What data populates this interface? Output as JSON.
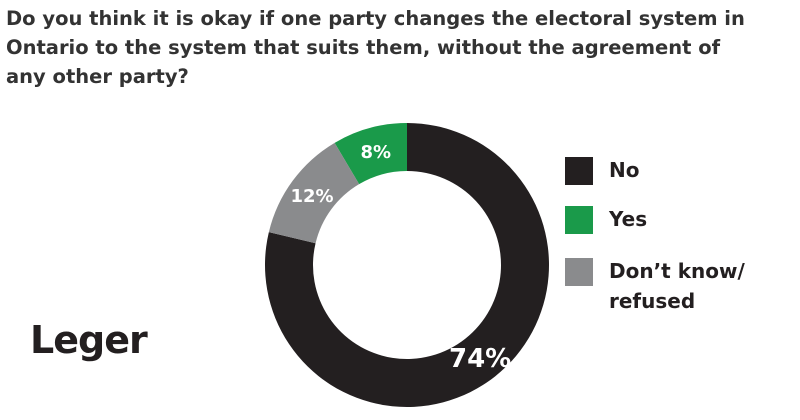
{
  "chart_data": {
    "type": "donut",
    "title": "Do you think it is okay if one party changes the electoral system in Ontario to the system that suits them, without the agreement of any other party?",
    "categories": [
      "No",
      "Yes",
      "Don’t know/ refused"
    ],
    "values": [
      74,
      8,
      12
    ],
    "value_labels": [
      "74%",
      "8%",
      "12%"
    ],
    "colors": [
      "#231f20",
      "#1a9a4a",
      "#8a8b8d"
    ],
    "legend": "right",
    "logo": "Leger"
  }
}
